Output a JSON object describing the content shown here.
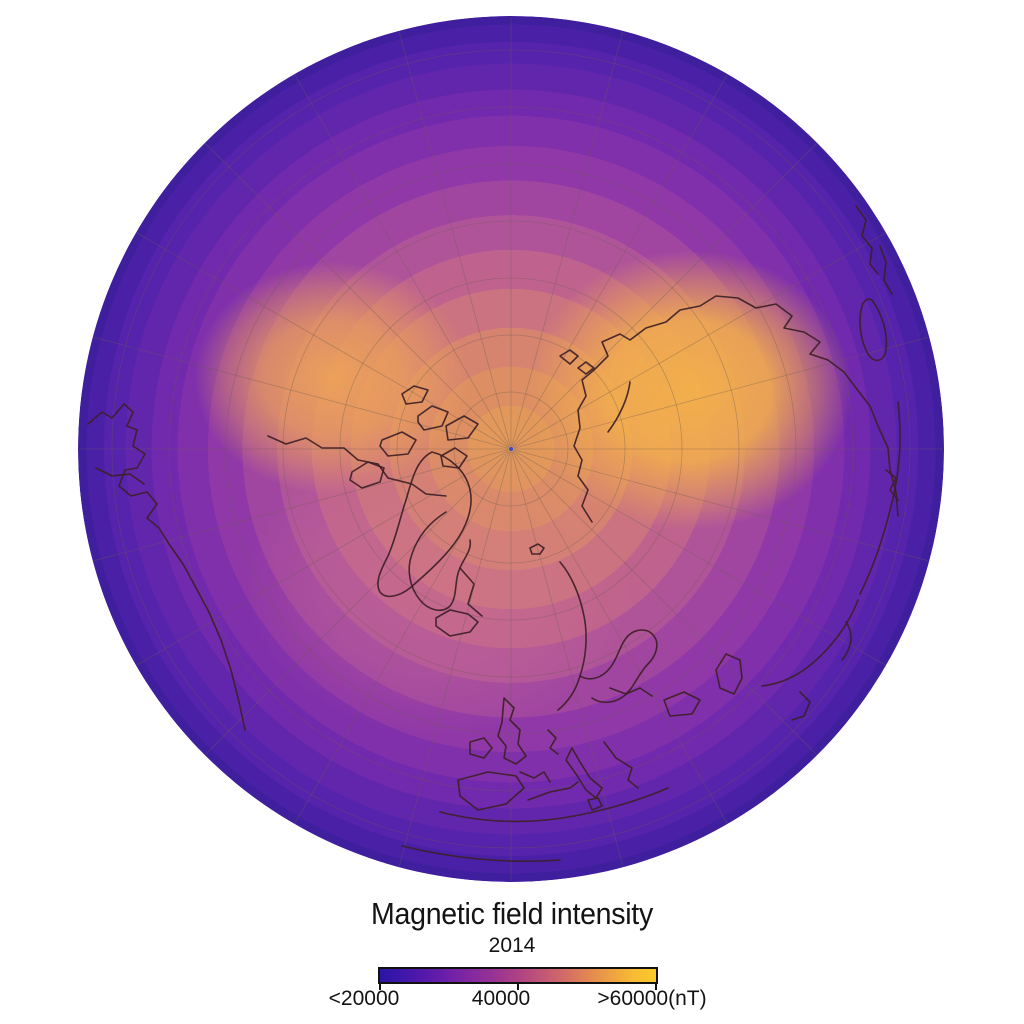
{
  "map": {
    "title": "Magnetic field intensity",
    "year": "2014",
    "colorbar": {
      "tick_labels": [
        "<20000",
        "40000",
        ">60000(nT)"
      ],
      "unit": "nT",
      "gradient": [
        "#2b15a6",
        "#3f16aa",
        "#5719ab",
        "#6e20a8",
        "#8529a0",
        "#9a3393",
        "#ae4285",
        "#c15577",
        "#d26b66",
        "#e28553",
        "#eea043",
        "#f7bb33",
        "#fbc92b"
      ]
    }
  },
  "globe": {
    "field_bands": [
      {
        "to": 0.1,
        "color": "#e2985a"
      },
      {
        "to": 0.19,
        "color": "#dd8f63"
      },
      {
        "to": 0.28,
        "color": "#d68370"
      },
      {
        "to": 0.37,
        "color": "#cb7380"
      },
      {
        "to": 0.46,
        "color": "#bf638e"
      },
      {
        "to": 0.54,
        "color": "#b0549a"
      },
      {
        "to": 0.62,
        "color": "#a046a1"
      },
      {
        "to": 0.7,
        "color": "#9038a7"
      },
      {
        "to": 0.77,
        "color": "#8030ab"
      },
      {
        "to": 0.83,
        "color": "#7129ad"
      },
      {
        "to": 0.89,
        "color": "#6226ad"
      },
      {
        "to": 0.94,
        "color": "#5523ac"
      },
      {
        "to": 0.98,
        "color": "#4a21a6"
      },
      {
        "to": 1.0,
        "color": "#3f1f9e"
      }
    ],
    "lobe_east_color": "#f5b14a",
    "lobe_west_color": "#f0a655",
    "mid_tint_color": "#d0738f",
    "coastline_color": "#3d2026",
    "graticule_color": "#6f5d4f",
    "pole_marker_color": "#3b4fc0"
  },
  "chart_data": {
    "type": "heatmap",
    "title": "Magnetic field intensity",
    "subtitle": "2014",
    "unit": "nT",
    "colorbar_tick_labels": [
      "<20000",
      "40000",
      ">60000(nT)"
    ],
    "value_range_nT": [
      20000,
      60000
    ],
    "colorbar_orientation": "horizontal",
    "legend_position": "bottom",
    "view": "north polar view of Earth",
    "pattern": "two high-intensity (~60000 nT) lobes over northern Canada and Siberia near the pole; intensity decreases outward to <20000 nT at the map edge"
  }
}
